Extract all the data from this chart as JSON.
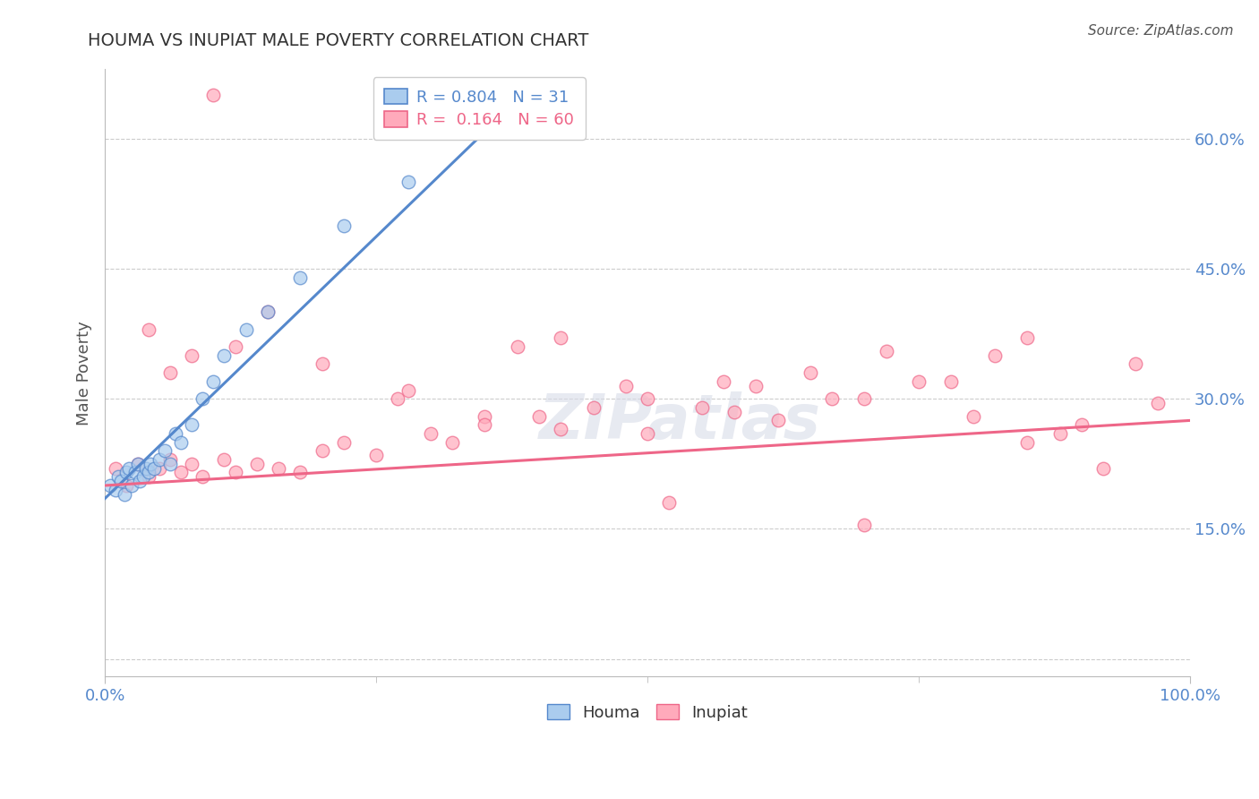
{
  "title": "HOUMA VS INUPIAT MALE POVERTY CORRELATION CHART",
  "source": "Source: ZipAtlas.com",
  "ylabel": "Male Poverty",
  "watermark": "ZIPatlas",
  "r_houma": 0.804,
  "n_houma": 31,
  "r_inupiat": 0.164,
  "n_inupiat": 60,
  "xlim": [
    0,
    100
  ],
  "ylim": [
    -2,
    68
  ],
  "yticks": [
    0,
    15,
    30,
    45,
    60
  ],
  "ytick_labels": [
    "",
    "15.0%",
    "30.0%",
    "45.0%",
    "60.0%"
  ],
  "xtick_labels": [
    "0.0%",
    "100.0%"
  ],
  "color_houma": "#aaccee",
  "color_houma_line": "#5588cc",
  "color_inupiat": "#ffaabb",
  "color_inupiat_line": "#ee6688",
  "title_color": "#333333",
  "axis_label_color": "#5588cc",
  "legend_r_color_blue": "#5588cc",
  "legend_r_color_pink": "#ee6688",
  "houma_x": [
    0.5,
    1.0,
    1.2,
    1.5,
    1.8,
    2.0,
    2.2,
    2.5,
    2.8,
    3.0,
    3.2,
    3.5,
    3.8,
    4.0,
    4.2,
    4.5,
    5.0,
    5.5,
    6.0,
    6.5,
    7.0,
    8.0,
    9.0,
    10.0,
    11.0,
    13.0,
    15.0,
    18.0,
    22.0,
    28.0,
    35.0
  ],
  "houma_y": [
    20.0,
    19.5,
    21.0,
    20.5,
    19.0,
    21.5,
    22.0,
    20.0,
    21.5,
    22.5,
    20.5,
    21.0,
    22.0,
    21.5,
    22.5,
    22.0,
    23.0,
    24.0,
    22.5,
    26.0,
    25.0,
    27.0,
    30.0,
    32.0,
    35.0,
    38.0,
    40.0,
    44.0,
    50.0,
    55.0,
    61.0
  ],
  "inupiat_x": [
    1.0,
    2.0,
    3.0,
    4.0,
    5.0,
    6.0,
    7.0,
    8.0,
    9.0,
    10.0,
    11.0,
    12.0,
    14.0,
    16.0,
    18.0,
    20.0,
    22.0,
    25.0,
    27.0,
    30.0,
    32.0,
    35.0,
    38.0,
    40.0,
    42.0,
    45.0,
    48.0,
    50.0,
    52.0,
    55.0,
    57.0,
    60.0,
    62.0,
    65.0,
    67.0,
    70.0,
    72.0,
    75.0,
    78.0,
    80.0,
    82.0,
    85.0,
    88.0,
    90.0,
    92.0,
    95.0,
    97.0,
    4.0,
    6.0,
    8.0,
    12.0,
    15.0,
    20.0,
    28.0,
    35.0,
    42.0,
    50.0,
    58.0,
    70.0,
    85.0
  ],
  "inupiat_y": [
    22.0,
    20.0,
    22.5,
    21.0,
    22.0,
    23.0,
    21.5,
    22.5,
    21.0,
    65.0,
    23.0,
    21.5,
    22.5,
    22.0,
    21.5,
    24.0,
    25.0,
    23.5,
    30.0,
    26.0,
    25.0,
    28.0,
    36.0,
    28.0,
    26.5,
    29.0,
    31.5,
    26.0,
    18.0,
    29.0,
    32.0,
    31.5,
    27.5,
    33.0,
    30.0,
    30.0,
    35.5,
    32.0,
    32.0,
    28.0,
    35.0,
    37.0,
    26.0,
    27.0,
    22.0,
    34.0,
    29.5,
    38.0,
    33.0,
    35.0,
    36.0,
    40.0,
    34.0,
    31.0,
    27.0,
    37.0,
    30.0,
    28.5,
    15.5,
    25.0
  ],
  "houma_line_start_x": 0,
  "houma_line_end_x": 36,
  "houma_line_start_y": 18.5,
  "houma_line_end_y": 62.0,
  "inupiat_line_start_x": 0,
  "inupiat_line_end_x": 100,
  "inupiat_line_start_y": 20.0,
  "inupiat_line_end_y": 27.5
}
